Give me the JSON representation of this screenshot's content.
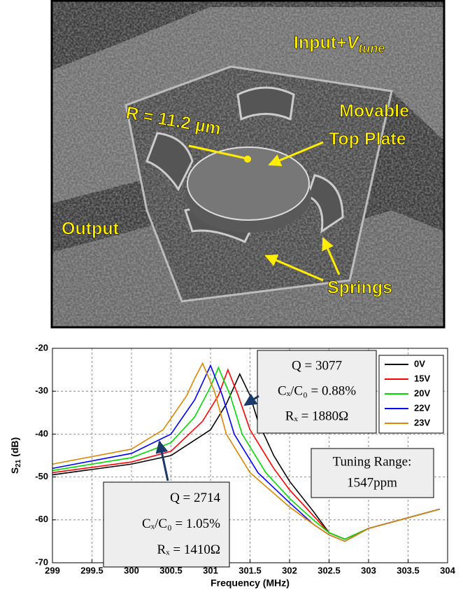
{
  "image_labels": {
    "input_parts": [
      "Input+",
      "V",
      "tune"
    ],
    "radius": "R = 11.2 µm",
    "plate_lines": [
      "Movable",
      "Top Plate"
    ],
    "output": "Output",
    "springs": "Springs"
  },
  "chart_data": {
    "type": "line",
    "x_label": "Frequency (MHz)",
    "y_label_parts": [
      "S",
      "21",
      " (dB)"
    ],
    "xlim": [
      299,
      304
    ],
    "xticks": [
      299,
      299.5,
      300,
      300.5,
      301,
      301.5,
      302,
      302.5,
      303,
      303.5,
      304
    ],
    "ylim": [
      -70,
      -20
    ],
    "yticks": [
      -70,
      -60,
      -50,
      -40,
      -30,
      -20
    ],
    "grid": true,
    "legend": "upper right",
    "series": [
      {
        "name": "0V",
        "color": "#000000",
        "x": [
          299,
          300,
          300.5,
          301,
          301.2,
          301.37,
          301.5,
          301.6,
          301.8,
          302,
          302.3,
          302.5,
          302.7,
          303,
          303.5,
          303.9
        ],
        "values": [
          -49.5,
          -47,
          -45,
          -39,
          -33,
          -26,
          -31,
          -37,
          -45,
          -51,
          -58,
          -63,
          -64.5,
          -62,
          -59.5,
          -57.5
        ]
      },
      {
        "name": "15V",
        "color": "#ff0000",
        "x": [
          299,
          300,
          300.5,
          300.9,
          301.1,
          301.22,
          301.35,
          301.5,
          301.8,
          302,
          302.3,
          302.5,
          302.7,
          303,
          303.5,
          303.9
        ],
        "values": [
          -49,
          -46.5,
          -44,
          -37,
          -31,
          -25,
          -31,
          -39,
          -48,
          -53,
          -59,
          -63,
          -64.5,
          -62,
          -59.5,
          -57.5
        ]
      },
      {
        "name": "20V",
        "color": "#00dd00",
        "x": [
          299,
          300,
          300.5,
          300.8,
          301,
          301.1,
          301.25,
          301.4,
          301.7,
          302,
          302.3,
          302.5,
          302.7,
          303,
          303.5,
          303.9
        ],
        "values": [
          -48.5,
          -45.5,
          -42,
          -36,
          -29,
          -24.5,
          -31,
          -40,
          -49,
          -55,
          -60,
          -63,
          -64.5,
          -62,
          -59.5,
          -57.5
        ]
      },
      {
        "name": "22V",
        "color": "#0000ff",
        "x": [
          299,
          300,
          300.5,
          300.8,
          300.9,
          301,
          301.15,
          301.3,
          301.6,
          302,
          302.3,
          302.5,
          302.7,
          303,
          303.5,
          303.9
        ],
        "values": [
          -48,
          -44.5,
          -40,
          -32,
          -28,
          -24,
          -31,
          -40,
          -49,
          -56,
          -61,
          -63.5,
          -65,
          -62,
          -59.5,
          -57.5
        ]
      },
      {
        "name": "23V",
        "color": "#dd8800",
        "x": [
          299,
          300,
          300.4,
          300.7,
          300.8,
          300.9,
          301.05,
          301.2,
          301.5,
          302,
          302.3,
          302.5,
          302.7,
          303,
          303.5,
          303.9
        ],
        "values": [
          -47,
          -43.5,
          -39,
          -31,
          -27,
          -23.5,
          -30,
          -40,
          -49,
          -57,
          -61,
          -63.5,
          -65,
          -62,
          -59.5,
          -57.5
        ]
      }
    ],
    "annotations": {
      "box_0v": [
        "Q = 3077",
        "Cₓ/C₀ = 0.88%",
        "Rₓ = 1880Ω"
      ],
      "tuning": [
        "Tuning Range:",
        "1547ppm"
      ],
      "box_23v": [
        "Q = 2714",
        "Cₓ/C₀ = 1.05%",
        "Rₓ = 1410Ω"
      ]
    }
  }
}
